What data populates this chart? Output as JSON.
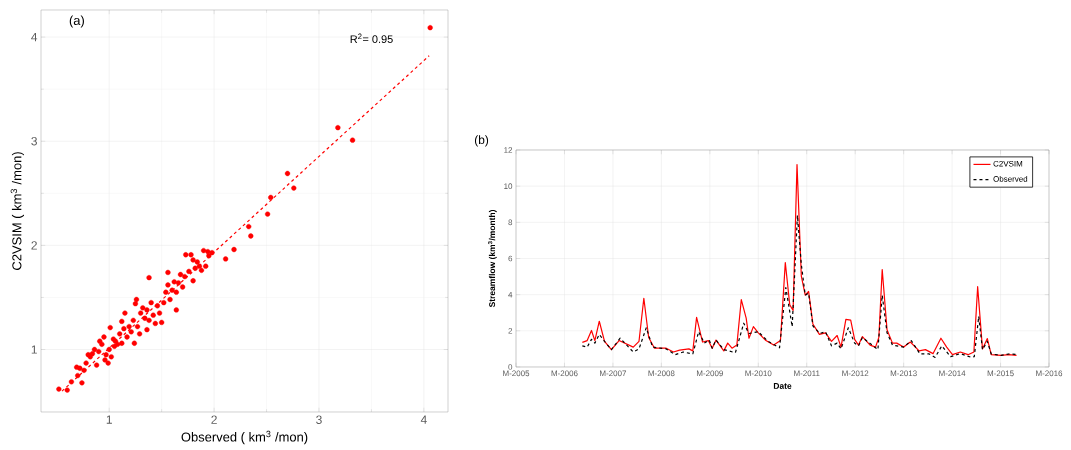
{
  "chart_data": [
    {
      "type": "scatter",
      "xlabel": "Observed ( km$^{3}$ /mon)",
      "ylabel": "C2VSIM ( km$^{3}$ /mon)",
      "annotations": [
        "(a)",
        "R$^{2}$= 0.95"
      ],
      "xlim": [
        0.35,
        4.23
      ],
      "ylim": [
        0.4,
        4.26
      ],
      "xticks": [
        1,
        2,
        3,
        4
      ],
      "yticks": [
        1,
        2,
        3,
        4
      ],
      "grid": true,
      "series": [
        {
          "type": "scatter",
          "color": "#ff0000",
          "marker": "circle",
          "x": [
            0.52,
            0.6,
            0.64,
            0.69,
            0.74,
            0.78,
            0.8,
            0.88,
            0.91,
            0.97,
            0.99,
            1.01,
            1.05,
            1.12,
            1.15,
            1.24,
            1.26,
            1.36,
            1.38,
            1.5,
            1.56,
            1.64,
            1.73,
            1.78,
            1.8,
            1.86,
            1.94,
            1.98,
            2.11,
            2.19,
            2.33,
            2.35,
            2.51,
            2.54,
            2.7,
            2.76,
            3.18,
            3.32,
            4.06,
            0.7,
            0.72,
            0.76,
            0.82,
            0.84,
            0.86,
            0.9,
            0.93,
            0.95,
            0.96,
            1.0,
            1.02,
            1.04,
            1.06,
            1.08,
            1.1,
            1.12,
            1.14,
            1.17,
            1.19,
            1.21,
            1.23,
            1.25,
            1.27,
            1.29,
            1.3,
            1.32,
            1.34,
            1.36,
            1.38,
            1.4,
            1.42,
            1.44,
            1.46,
            1.48,
            1.52,
            1.54,
            1.56,
            1.58,
            1.6,
            1.62,
            1.64,
            1.66,
            1.68,
            1.7,
            1.72,
            1.76,
            1.8,
            1.82,
            1.84,
            1.88,
            1.9,
            1.92,
            1.95
          ],
          "values": [
            0.62,
            0.61,
            0.69,
            0.83,
            0.68,
            0.87,
            0.95,
            0.85,
            1.08,
            0.95,
            0.87,
            1.21,
            1.03,
            1.27,
            1.35,
            1.06,
            1.48,
            1.19,
            1.69,
            1.26,
            1.74,
            1.38,
            1.91,
            1.91,
            1.66,
            1.8,
            1.94,
            1.93,
            1.87,
            1.96,
            2.18,
            2.09,
            2.3,
            2.46,
            2.69,
            2.55,
            3.13,
            3.01,
            4.09,
            0.75,
            0.82,
            0.8,
            0.93,
            0.96,
            1.0,
            0.98,
            1.05,
            1.12,
            0.9,
            1.0,
            0.93,
            1.1,
            1.08,
            1.05,
            1.15,
            1.06,
            1.2,
            1.12,
            1.22,
            1.17,
            1.28,
            1.44,
            1.22,
            1.15,
            1.35,
            1.4,
            1.3,
            1.38,
            1.28,
            1.45,
            1.33,
            1.25,
            1.42,
            1.35,
            1.45,
            1.55,
            1.62,
            1.48,
            1.57,
            1.65,
            1.55,
            1.64,
            1.72,
            1.6,
            1.7,
            1.75,
            1.86,
            1.78,
            1.84,
            1.76,
            1.95,
            1.8,
            1.9
          ]
        },
        {
          "type": "line",
          "color": "#ff0000",
          "line_style": "dashed",
          "x": [
            0.55,
            4.05
          ],
          "values": [
            0.6,
            3.82
          ]
        }
      ]
    },
    {
      "type": "line",
      "xlabel": "Date",
      "ylabel": "Streamflow (km$^{3}$/month)",
      "annotations": [
        "(b)"
      ],
      "xlim": [
        "2005",
        "2016"
      ],
      "ylim": [
        0,
        12
      ],
      "xticks": [
        {
          "value": "2005",
          "label": "M-2005"
        },
        {
          "value": "2006",
          "label": "M-2006"
        },
        {
          "value": "2007",
          "label": "M-2007"
        },
        {
          "value": "2008",
          "label": "M-2008"
        },
        {
          "value": "2009",
          "label": "M-2009"
        },
        {
          "value": "2010",
          "label": "M-2010"
        },
        {
          "value": "2011",
          "label": "M-2011"
        },
        {
          "value": "2012",
          "label": "M-2012"
        },
        {
          "value": "2013",
          "label": "M-2013"
        },
        {
          "value": "2014",
          "label": "M-2014"
        },
        {
          "value": "2015",
          "label": "M-2015"
        },
        {
          "value": "2016",
          "label": "M-2016"
        }
      ],
      "yticks": [
        0,
        2,
        4,
        6,
        8,
        10,
        12
      ],
      "grid": true,
      "legend": "top right",
      "series": [
        {
          "name": "C2VSIM",
          "color": "#ff0000",
          "line_style": "solid",
          "x": [
            "2006-05-14",
            "2006-06-20",
            "2006-07-22",
            "2006-08-17",
            "2006-09-20",
            "2006-10-29",
            "2006-12-20",
            "2007-02-17",
            "2007-06-02",
            "2007-07-15",
            "2007-08-21",
            "2007-09-27",
            "2007-11-10",
            "2008-02-07",
            "2008-04-01",
            "2008-05-17",
            "2008-07-26",
            "2008-08-25",
            "2008-09-23",
            "2008-11-07",
            "2008-12-20",
            "2009-01-19",
            "2009-02-17",
            "2009-04-15",
            "2009-05-14",
            "2009-06-16",
            "2009-07-22",
            "2009-08-25",
            "2009-10-01",
            "2009-10-22",
            "2009-11-25",
            "2010-01-01",
            "2010-02-28",
            "2010-04-26",
            "2010-06-16",
            "2010-07-22",
            "2010-08-25",
            "2010-09-20",
            "2010-10-19",
            "2010-11-21",
            "2010-12-20",
            "2011-01-15",
            "2011-02-17",
            "2011-04-05",
            "2011-05-21",
            "2011-07-05",
            "2011-08-17",
            "2011-09-16",
            "2011-10-22",
            "2011-11-28",
            "2011-12-27",
            "2012-01-26",
            "2012-02-25",
            "2012-04-22",
            "2012-06-02",
            "2012-06-27",
            "2012-07-22",
            "2012-08-28",
            "2012-10-08",
            "2012-11-10",
            "2013-01-01",
            "2013-02-21",
            "2013-04-26",
            "2013-06-13",
            "2013-08-10",
            "2013-10-08",
            "2013-11-21",
            "2014-01-04",
            "2014-03-02",
            "2014-04-30",
            "2014-06-13",
            "2014-07-11",
            "2014-08-17",
            "2014-09-23",
            "2014-10-22",
            "2015-01-04",
            "2015-03-02",
            "2015-04-30"
          ],
          "values": [
            1.36,
            1.46,
            2.02,
            1.46,
            2.53,
            1.42,
            0.96,
            1.46,
            1.1,
            1.42,
            3.8,
            1.63,
            1.04,
            1.04,
            0.83,
            0.93,
            1.0,
            0.89,
            2.74,
            1.38,
            1.46,
            1.04,
            1.49,
            0.89,
            1.32,
            1.04,
            1.21,
            3.72,
            2.7,
            1.59,
            2.23,
            1.89,
            1.46,
            1.21,
            1.46,
            5.77,
            3.44,
            3.12,
            11.19,
            5.03,
            3.97,
            4.18,
            2.38,
            1.8,
            1.89,
            1.42,
            1.74,
            1.1,
            2.63,
            2.59,
            1.53,
            1.21,
            1.68,
            1.21,
            1.1,
            1.63,
            5.39,
            2.06,
            1.32,
            1.32,
            1.1,
            1.38,
            0.89,
            0.96,
            0.74,
            1.59,
            1.1,
            0.68,
            0.83,
            0.68,
            0.83,
            4.44,
            1.0,
            1.57,
            0.68,
            0.64,
            0.68,
            0.64
          ]
        },
        {
          "name": "Observed",
          "color": "#000000",
          "line_style": "dashed",
          "x": [
            "2006-05-14",
            "2006-06-20",
            "2006-07-22",
            "2006-08-17",
            "2006-09-20",
            "2006-10-29",
            "2006-12-20",
            "2007-02-25",
            "2007-06-02",
            "2007-07-15",
            "2007-09-09",
            "2007-10-26",
            "2008-02-07",
            "2008-04-15",
            "2008-06-13",
            "2008-08-25",
            "2008-10-08",
            "2008-11-21",
            "2008-12-27",
            "2009-01-19",
            "2009-02-17",
            "2009-04-15",
            "2009-07-11",
            "2009-09-13",
            "2009-10-22",
            "2010-01-01",
            "2010-03-13",
            "2010-06-09",
            "2010-07-26",
            "2010-09-13",
            "2010-10-22",
            "2010-11-21",
            "2010-12-20",
            "2011-01-15",
            "2011-02-17",
            "2011-04-08",
            "2011-05-21",
            "2011-07-05",
            "2011-08-17",
            "2011-09-16",
            "2011-11-10",
            "2011-12-27",
            "2012-01-26",
            "2012-02-25",
            "2012-05-07",
            "2012-06-20",
            "2012-07-22",
            "2012-08-28",
            "2012-10-08",
            "2013-01-01",
            "2013-02-28",
            "2013-05-03",
            "2013-07-11",
            "2013-08-25",
            "2013-10-15",
            "2013-12-20",
            "2014-03-02",
            "2014-05-25",
            "2014-06-16",
            "2014-07-19",
            "2014-08-17",
            "2014-09-23",
            "2014-10-22",
            "2015-01-04",
            "2015-03-02",
            "2015-04-30"
          ],
          "values": [
            1.17,
            1.1,
            1.53,
            1.32,
            1.8,
            1.42,
            0.96,
            1.59,
            0.83,
            1.0,
            2.17,
            1.1,
            1.0,
            0.68,
            0.83,
            0.72,
            1.95,
            1.32,
            1.49,
            1.04,
            1.49,
            0.96,
            0.79,
            2.42,
            1.85,
            1.95,
            1.42,
            1.06,
            4.39,
            2.23,
            8.39,
            5.67,
            3.97,
            4.08,
            2.27,
            1.85,
            1.95,
            1.17,
            1.32,
            1.0,
            2.17,
            1.32,
            1.17,
            1.63,
            1.21,
            0.96,
            3.97,
            1.89,
            1.21,
            1.1,
            1.46,
            0.72,
            0.72,
            0.53,
            1.17,
            0.57,
            0.74,
            0.53,
            0.57,
            2.8,
            0.96,
            1.42,
            0.72,
            0.64,
            0.72,
            0.7
          ]
        }
      ]
    }
  ]
}
